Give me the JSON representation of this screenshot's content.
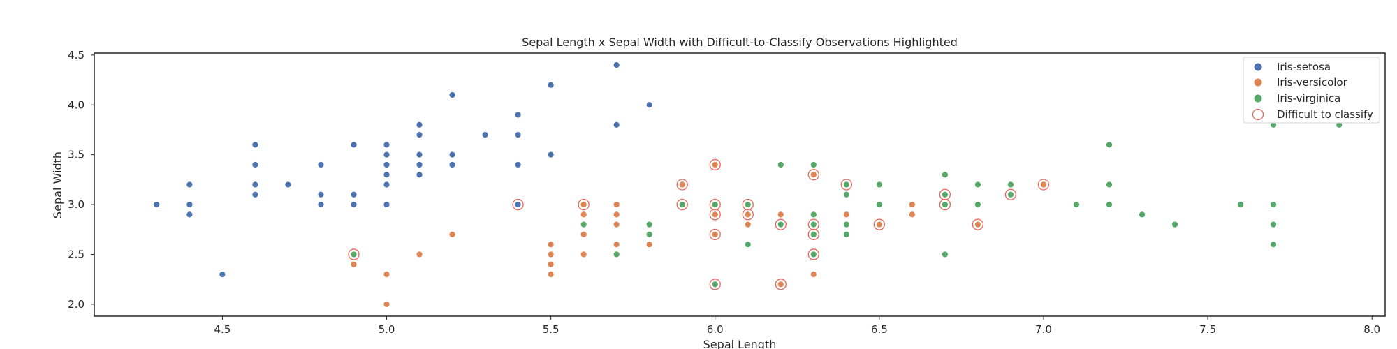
{
  "chart_data": {
    "type": "scatter",
    "title": "Sepal Length x Sepal Width with Difficult-to-Classify Observations Highlighted",
    "xlabel": "Sepal Length",
    "ylabel": "Sepal Width",
    "xlim": [
      4.11,
      8.04
    ],
    "ylim": [
      1.88,
      4.52
    ],
    "xticks": [
      4.5,
      5.0,
      5.5,
      6.0,
      6.5,
      7.0,
      7.5,
      8.0
    ],
    "yticks": [
      2.0,
      2.5,
      3.0,
      3.5,
      4.0,
      4.5
    ],
    "grid": false,
    "legend_position": "top-right",
    "series": [
      {
        "name": "Iris-setosa",
        "color": "#4c72b0",
        "points": [
          [
            4.3,
            3.0
          ],
          [
            4.4,
            3.2
          ],
          [
            4.4,
            3.0
          ],
          [
            4.4,
            2.9
          ],
          [
            4.5,
            2.3
          ],
          [
            4.6,
            3.6
          ],
          [
            4.6,
            3.4
          ],
          [
            4.6,
            3.2
          ],
          [
            4.6,
            3.1
          ],
          [
            4.7,
            3.2
          ],
          [
            4.8,
            3.4
          ],
          [
            4.8,
            3.1
          ],
          [
            4.8,
            3.0
          ],
          [
            4.9,
            3.6
          ],
          [
            4.9,
            3.1
          ],
          [
            4.9,
            3.0
          ],
          [
            5.0,
            3.6
          ],
          [
            5.0,
            3.5
          ],
          [
            5.0,
            3.4
          ],
          [
            5.0,
            3.3
          ],
          [
            5.0,
            3.2
          ],
          [
            5.0,
            3.0
          ],
          [
            5.1,
            3.8
          ],
          [
            5.1,
            3.7
          ],
          [
            5.1,
            3.5
          ],
          [
            5.1,
            3.4
          ],
          [
            5.1,
            3.3
          ],
          [
            5.2,
            4.1
          ],
          [
            5.2,
            3.5
          ],
          [
            5.2,
            3.4
          ],
          [
            5.3,
            3.7
          ],
          [
            5.4,
            3.9
          ],
          [
            5.4,
            3.7
          ],
          [
            5.4,
            3.4
          ],
          [
            5.4,
            3.0
          ],
          [
            5.5,
            4.2
          ],
          [
            5.5,
            3.5
          ],
          [
            5.7,
            4.4
          ],
          [
            5.7,
            3.8
          ],
          [
            5.8,
            4.0
          ]
        ]
      },
      {
        "name": "Iris-versicolor",
        "color": "#dd8452",
        "points": [
          [
            4.9,
            2.4
          ],
          [
            5.0,
            2.3
          ],
          [
            5.0,
            2.0
          ],
          [
            5.1,
            2.5
          ],
          [
            5.2,
            2.7
          ],
          [
            5.5,
            2.6
          ],
          [
            5.5,
            2.5
          ],
          [
            5.5,
            2.4
          ],
          [
            5.5,
            2.3
          ],
          [
            5.6,
            3.0
          ],
          [
            5.6,
            2.9
          ],
          [
            5.6,
            2.7
          ],
          [
            5.6,
            2.5
          ],
          [
            5.7,
            3.0
          ],
          [
            5.7,
            2.9
          ],
          [
            5.7,
            2.8
          ],
          [
            5.7,
            2.6
          ],
          [
            5.8,
            2.7
          ],
          [
            5.8,
            2.6
          ],
          [
            5.9,
            3.2
          ],
          [
            5.9,
            3.0
          ],
          [
            6.0,
            3.4
          ],
          [
            6.0,
            2.9
          ],
          [
            6.0,
            2.7
          ],
          [
            6.0,
            2.2
          ],
          [
            6.1,
            3.0
          ],
          [
            6.1,
            2.9
          ],
          [
            6.1,
            2.8
          ],
          [
            6.2,
            2.9
          ],
          [
            6.2,
            2.2
          ],
          [
            6.3,
            3.3
          ],
          [
            6.3,
            2.5
          ],
          [
            6.3,
            2.3
          ],
          [
            6.4,
            3.2
          ],
          [
            6.4,
            2.9
          ],
          [
            6.5,
            2.8
          ],
          [
            6.6,
            3.0
          ],
          [
            6.6,
            2.9
          ],
          [
            6.7,
            3.1
          ],
          [
            6.7,
            3.0
          ],
          [
            6.8,
            2.8
          ],
          [
            6.9,
            3.1
          ],
          [
            7.0,
            3.2
          ]
        ]
      },
      {
        "name": "Iris-virginica",
        "color": "#55a868",
        "points": [
          [
            4.9,
            2.5
          ],
          [
            5.6,
            2.8
          ],
          [
            5.7,
            2.5
          ],
          [
            5.8,
            2.8
          ],
          [
            5.8,
            2.7
          ],
          [
            5.9,
            3.0
          ],
          [
            6.0,
            3.0
          ],
          [
            6.0,
            2.2
          ],
          [
            6.1,
            3.0
          ],
          [
            6.1,
            2.6
          ],
          [
            6.2,
            3.4
          ],
          [
            6.2,
            2.8
          ],
          [
            6.3,
            3.4
          ],
          [
            6.3,
            2.9
          ],
          [
            6.3,
            2.8
          ],
          [
            6.3,
            2.7
          ],
          [
            6.3,
            2.5
          ],
          [
            6.4,
            3.2
          ],
          [
            6.4,
            3.1
          ],
          [
            6.4,
            2.8
          ],
          [
            6.4,
            2.7
          ],
          [
            6.5,
            3.2
          ],
          [
            6.5,
            3.0
          ],
          [
            6.7,
            3.3
          ],
          [
            6.7,
            3.1
          ],
          [
            6.7,
            3.0
          ],
          [
            6.7,
            2.5
          ],
          [
            6.8,
            3.2
          ],
          [
            6.8,
            3.0
          ],
          [
            6.9,
            3.2
          ],
          [
            6.9,
            3.1
          ],
          [
            7.1,
            3.0
          ],
          [
            7.2,
            3.6
          ],
          [
            7.2,
            3.2
          ],
          [
            7.2,
            3.0
          ],
          [
            7.3,
            2.9
          ],
          [
            7.4,
            2.8
          ],
          [
            7.6,
            3.0
          ],
          [
            7.7,
            3.8
          ],
          [
            7.7,
            3.0
          ],
          [
            7.7,
            2.8
          ],
          [
            7.7,
            2.6
          ],
          [
            7.9,
            3.8
          ]
        ]
      }
    ],
    "highlight": {
      "name": "Difficult to classify",
      "color": "#e8665a",
      "points": [
        [
          4.9,
          2.5
        ],
        [
          5.4,
          3.0
        ],
        [
          5.6,
          3.0
        ],
        [
          5.9,
          3.2
        ],
        [
          5.9,
          3.0
        ],
        [
          6.0,
          3.4
        ],
        [
          6.0,
          3.0
        ],
        [
          6.0,
          2.9
        ],
        [
          6.0,
          2.7
        ],
        [
          6.0,
          2.2
        ],
        [
          6.1,
          3.0
        ],
        [
          6.1,
          2.9
        ],
        [
          6.2,
          2.8
        ],
        [
          6.2,
          2.2
        ],
        [
          6.3,
          3.3
        ],
        [
          6.3,
          2.8
        ],
        [
          6.3,
          2.7
        ],
        [
          6.3,
          2.5
        ],
        [
          6.4,
          3.2
        ],
        [
          6.5,
          2.8
        ],
        [
          6.7,
          3.1
        ],
        [
          6.7,
          3.0
        ],
        [
          6.8,
          2.8
        ],
        [
          6.9,
          3.1
        ],
        [
          7.0,
          3.2
        ]
      ]
    }
  }
}
